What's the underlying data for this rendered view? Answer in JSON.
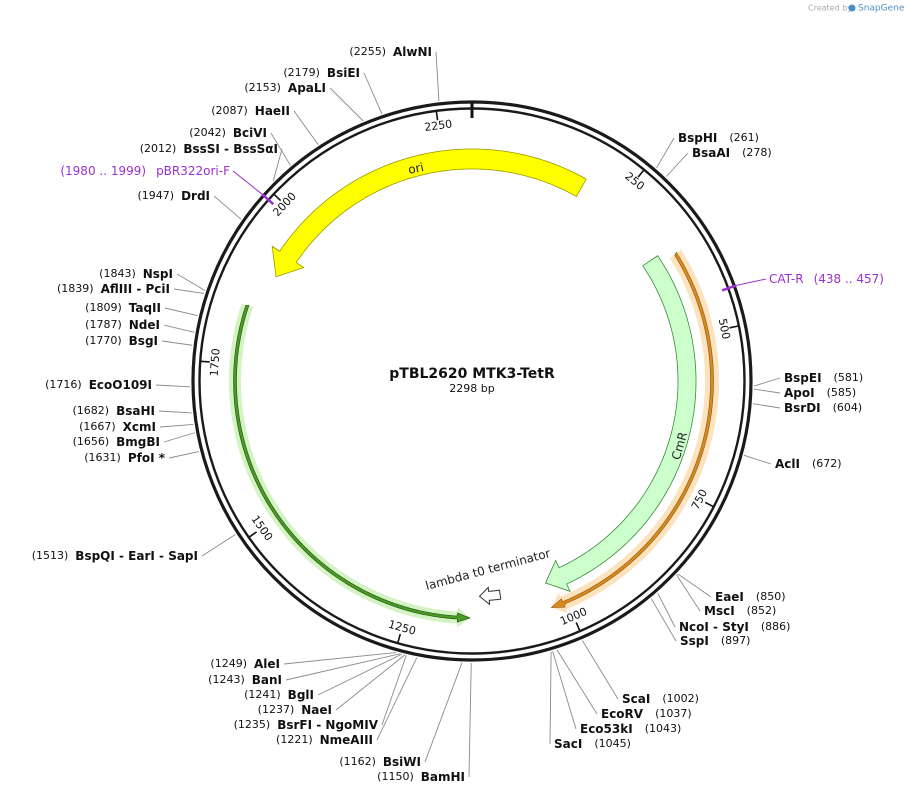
{
  "header": {
    "credit": "Created by",
    "brand": "SnapGene"
  },
  "map": {
    "name": "pTBL2620 MTK3-TetR",
    "size": "2298 bp",
    "ticks": [
      250,
      500,
      750,
      1000,
      1250,
      1500,
      1750,
      2000,
      2250
    ],
    "features": [
      {
        "label": "ori"
      },
      {
        "label": "CmR"
      },
      {
        "label": "lambda t0 terminator"
      }
    ],
    "primers": [
      {
        "name": "pBR322ori-F",
        "range": "(1980 .. 1999)"
      },
      {
        "name": "CAT-R",
        "range": "(438 .. 457)"
      }
    ],
    "enzymes": [
      {
        "site": "(2255)",
        "name": "AlwNI"
      },
      {
        "site": "(2179)",
        "name": "BsiEI"
      },
      {
        "site": "(2153)",
        "name": "ApaLI"
      },
      {
        "site": "(2087)",
        "name": "HaeII"
      },
      {
        "site": "(2042)",
        "name": "BciVI"
      },
      {
        "site": "(2012)",
        "name": "BssSI - BssSαI"
      },
      {
        "site": "(1947)",
        "name": "DrdI"
      },
      {
        "site": "(1843)",
        "name": "NspI"
      },
      {
        "site": "(1839)",
        "name": "AflIII - PciI"
      },
      {
        "site": "(1809)",
        "name": "TaqII"
      },
      {
        "site": "(1787)",
        "name": "NdeI"
      },
      {
        "site": "(1770)",
        "name": "BsgI"
      },
      {
        "site": "(1716)",
        "name": "EcoO109I"
      },
      {
        "site": "(1682)",
        "name": "BsaHI"
      },
      {
        "site": "(1667)",
        "name": "XcmI"
      },
      {
        "site": "(1656)",
        "name": "BmgBI"
      },
      {
        "site": "(1631)",
        "name": "PfoI *"
      },
      {
        "site": "(1513)",
        "name": "BspQI - EarI - SapI"
      },
      {
        "site": "(1249)",
        "name": "AleI"
      },
      {
        "site": "(1243)",
        "name": "BanI"
      },
      {
        "site": "(1241)",
        "name": "BglI"
      },
      {
        "site": "(1237)",
        "name": "NaeI"
      },
      {
        "site": "(1235)",
        "name": "BsrFI - NgoMIV"
      },
      {
        "site": "(1221)",
        "name": "NmeAIII"
      },
      {
        "site": "(1162)",
        "name": "BsiWI"
      },
      {
        "site": "(1150)",
        "name": "BamHI"
      },
      {
        "site": "(1045)",
        "name": "SacI"
      },
      {
        "site": "(1043)",
        "name": "Eco53kI"
      },
      {
        "site": "(1037)",
        "name": "EcoRV"
      },
      {
        "site": "(1002)",
        "name": "ScaI"
      },
      {
        "site": "(897)",
        "name": "SspI"
      },
      {
        "site": "(886)",
        "name": "NcoI - StyI"
      },
      {
        "site": "(852)",
        "name": "MscI"
      },
      {
        "site": "(850)",
        "name": "EaeI"
      },
      {
        "site": "(672)",
        "name": "AclI"
      },
      {
        "site": "(604)",
        "name": "BsrDI"
      },
      {
        "site": "(585)",
        "name": "ApoI"
      },
      {
        "site": "(581)",
        "name": "BspEI"
      },
      {
        "site": "(278)",
        "name": "BsaAI"
      },
      {
        "site": "(261)",
        "name": "BspHI"
      }
    ]
  }
}
